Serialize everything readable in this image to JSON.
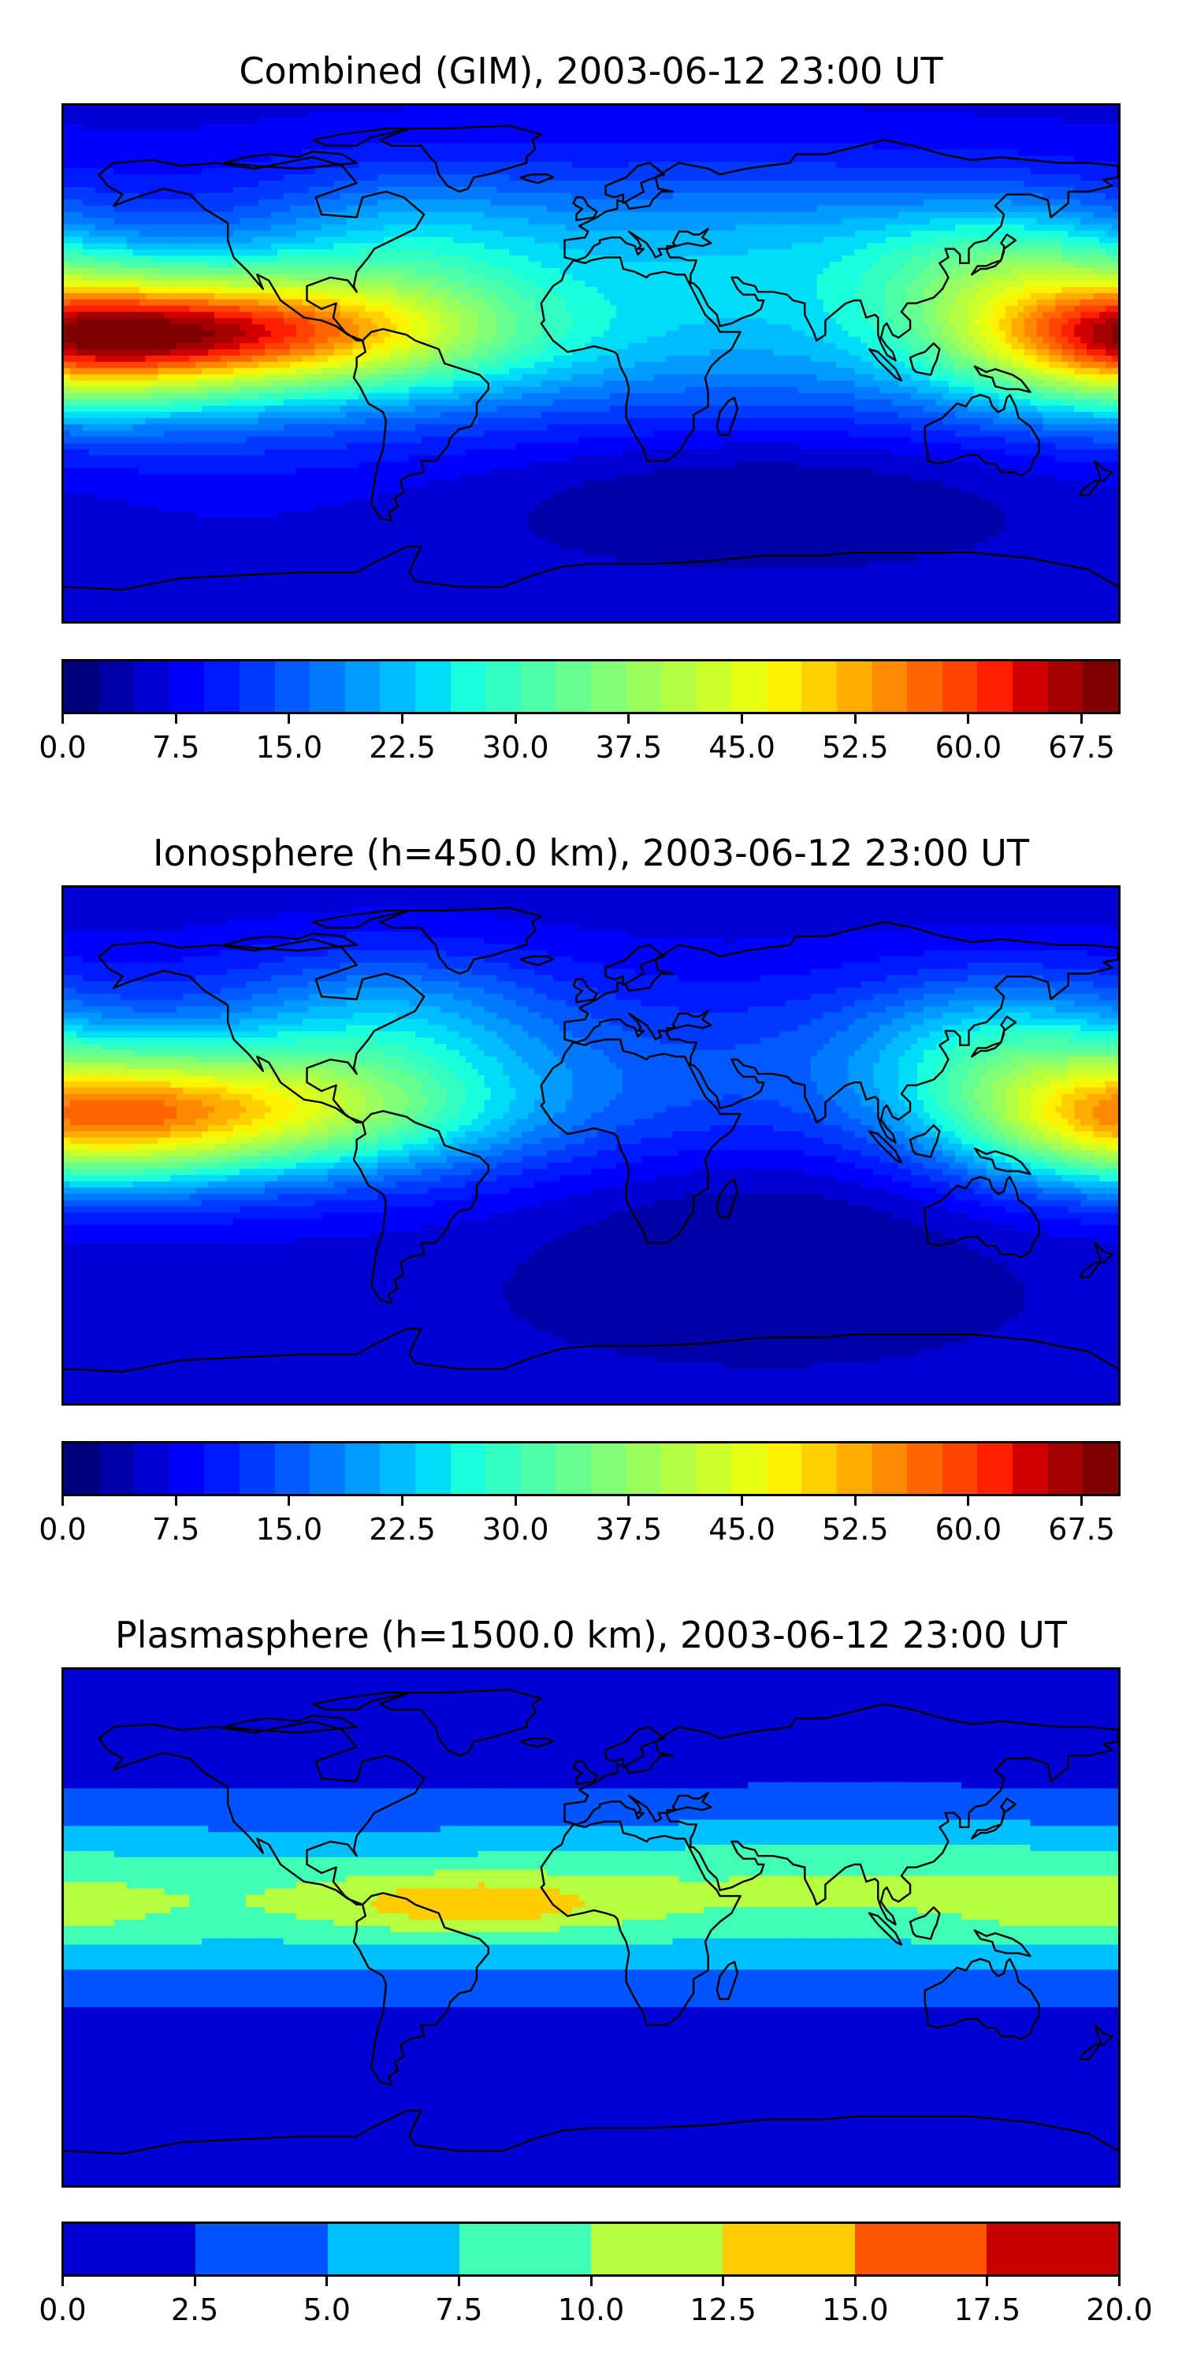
{
  "panels": [
    {
      "title": "Combined (GIM), 2003-06-12 23:00 UT",
      "colorbar": {
        "levels": 28,
        "min": 0,
        "max": 70,
        "colors": [
          "#00007f",
          "#0000a9",
          "#0000d4",
          "#0000ff",
          "#0019ff",
          "#0039ff",
          "#005aff",
          "#007bff",
          "#009bff",
          "#00bcff",
          "#00ddf7",
          "#1affdd",
          "#34ffc3",
          "#4dffaa",
          "#67ff90",
          "#80ff77",
          "#9aff5d",
          "#b3ff44",
          "#cdff2a",
          "#e7ff10",
          "#fff200",
          "#ffcf00",
          "#ffac00",
          "#ff8900",
          "#ff6600",
          "#ff4300",
          "#ff2000",
          "#d00000",
          "#a40000",
          "#7f0000"
        ],
        "tick_labels": [
          "0.0",
          "7.5",
          "15.0",
          "22.5",
          "30.0",
          "37.5",
          "45.0",
          "52.5",
          "60.0",
          "67.5"
        ],
        "tick_values": [
          0,
          7.5,
          15,
          22.5,
          30,
          37.5,
          45,
          52.5,
          60,
          67.5
        ]
      },
      "field": "combined"
    },
    {
      "title": "Ionosphere  (h=450.0 km), 2003-06-12 23:00 UT",
      "colorbar": {
        "levels": 28,
        "min": 0,
        "max": 70,
        "colors": [
          "#00007f",
          "#0000a9",
          "#0000d4",
          "#0000ff",
          "#0019ff",
          "#0039ff",
          "#005aff",
          "#007bff",
          "#009bff",
          "#00bcff",
          "#00ddf7",
          "#1affdd",
          "#34ffc3",
          "#4dffaa",
          "#67ff90",
          "#80ff77",
          "#9aff5d",
          "#b3ff44",
          "#cdff2a",
          "#e7ff10",
          "#fff200",
          "#ffcf00",
          "#ffac00",
          "#ff8900",
          "#ff6600",
          "#ff4300",
          "#ff2000",
          "#d00000",
          "#a40000",
          "#7f0000"
        ],
        "tick_labels": [
          "0.0",
          "7.5",
          "15.0",
          "22.5",
          "30.0",
          "37.5",
          "45.0",
          "52.5",
          "60.0",
          "67.5"
        ],
        "tick_values": [
          0,
          7.5,
          15,
          22.5,
          30,
          37.5,
          45,
          52.5,
          60,
          67.5
        ]
      },
      "field": "iono"
    },
    {
      "title": "Plasmasphere (h=1500.0 km), 2003-06-12 23:00 UT",
      "colorbar": {
        "levels": 8,
        "min": 0,
        "max": 20,
        "colors": [
          "#0000d4",
          "#0055ff",
          "#00c0ff",
          "#40ffb5",
          "#b5ff40",
          "#ffcc00",
          "#ff5500",
          "#c80000"
        ],
        "tick_labels": [
          "0.0",
          "2.5",
          "5.0",
          "7.5",
          "10.0",
          "12.5",
          "15.0",
          "17.5",
          "20.0"
        ],
        "tick_values": [
          0,
          2.5,
          5,
          7.5,
          10,
          12.5,
          15,
          17.5,
          20
        ]
      },
      "field": "plasma"
    }
  ]
}
